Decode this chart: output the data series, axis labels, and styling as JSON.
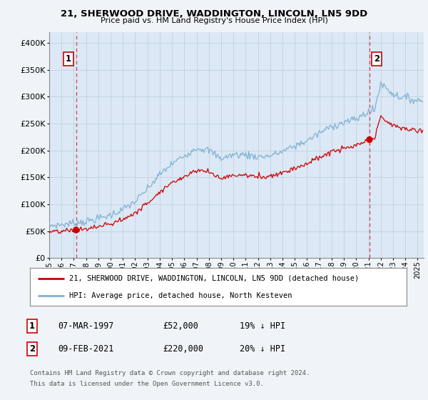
{
  "title": "21, SHERWOOD DRIVE, WADDINGTON, LINCOLN, LN5 9DD",
  "subtitle": "Price paid vs. HM Land Registry's House Price Index (HPI)",
  "ylim": [
    0,
    420000
  ],
  "yticks": [
    0,
    50000,
    100000,
    150000,
    200000,
    250000,
    300000,
    350000,
    400000
  ],
  "ytick_labels": [
    "£0",
    "£50K",
    "£100K",
    "£150K",
    "£200K",
    "£250K",
    "£300K",
    "£350K",
    "£400K"
  ],
  "xlim_start": 1995.0,
  "xlim_end": 2025.5,
  "xtick_years": [
    1995,
    1996,
    1997,
    1998,
    1999,
    2000,
    2001,
    2002,
    2003,
    2004,
    2005,
    2006,
    2007,
    2008,
    2009,
    2010,
    2011,
    2012,
    2013,
    2014,
    2015,
    2016,
    2017,
    2018,
    2019,
    2020,
    2021,
    2022,
    2023,
    2024,
    2025
  ],
  "sale1_x": 1997.18,
  "sale1_y": 52000,
  "sale1_label": "1",
  "sale1_date": "07-MAR-1997",
  "sale1_price": "£52,000",
  "sale1_hpi": "19% ↓ HPI",
  "sale2_x": 2021.08,
  "sale2_y": 220000,
  "sale2_label": "2",
  "sale2_date": "09-FEB-2021",
  "sale2_price": "£220,000",
  "sale2_hpi": "20% ↓ HPI",
  "line_color_sale": "#cc0000",
  "line_color_hpi": "#7fb3d3",
  "dot_color": "#cc0000",
  "legend_sale_label": "21, SHERWOOD DRIVE, WADDINGTON, LINCOLN, LN5 9DD (detached house)",
  "legend_hpi_label": "HPI: Average price, detached house, North Kesteven",
  "footer1": "Contains HM Land Registry data © Crown copyright and database right 2024.",
  "footer2": "This data is licensed under the Open Government Licence v3.0.",
  "bg_color": "#f0f4f8",
  "plot_bg_color": "#dce8f5",
  "grid_color": "#c0cfe0"
}
